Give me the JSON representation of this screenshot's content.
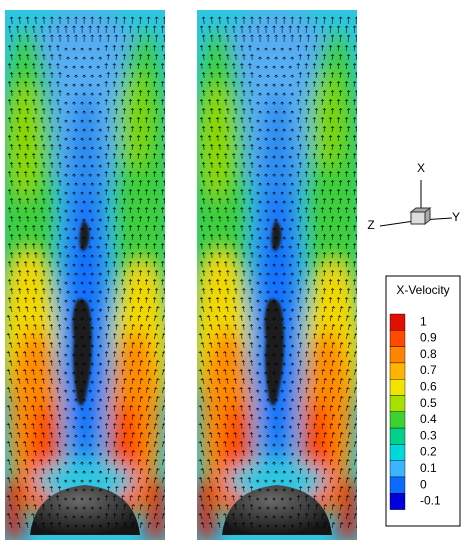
{
  "triad": {
    "x": "X",
    "y": "Y",
    "z": "Z"
  },
  "legend": {
    "title": "X-Velocity",
    "levels": [
      {
        "label": "1",
        "color": "#e01000"
      },
      {
        "label": "0.9",
        "color": "#ff4a00"
      },
      {
        "label": "0.8",
        "color": "#ff8400"
      },
      {
        "label": "0.7",
        "color": "#ffb400"
      },
      {
        "label": "0.6",
        "color": "#f2e400"
      },
      {
        "label": "0.5",
        "color": "#a4e000"
      },
      {
        "label": "0.4",
        "color": "#3cd232"
      },
      {
        "label": "0.3",
        "color": "#00d28c"
      },
      {
        "label": "0.2",
        "color": "#00d8dc"
      },
      {
        "label": "0.1",
        "color": "#3cb4ff"
      },
      {
        "label": "0",
        "color": "#0a6cff"
      },
      {
        "label": "-0.1",
        "color": "#0000dc"
      }
    ]
  }
}
